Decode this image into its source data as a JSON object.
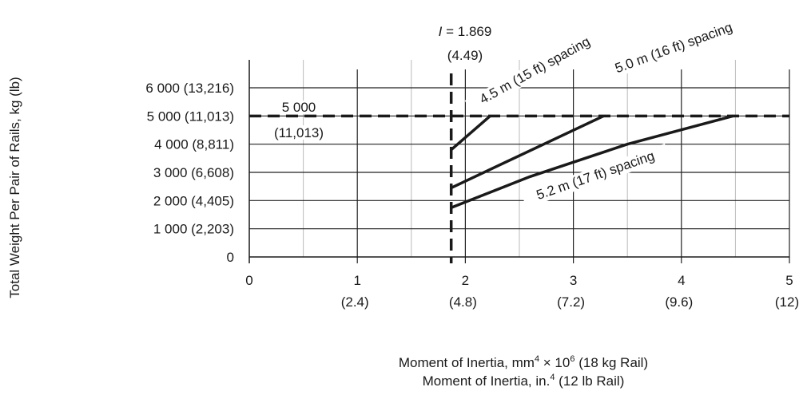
{
  "chart_data": {
    "type": "line",
    "ylabel": "Total Weight Per Pair of Rails, kg (lb)",
    "xlabel_line1": "Moment of Inertia, mm",
    "xlabel_line1_sup1": "4",
    "xlabel_line1_mid": " × 10",
    "xlabel_line1_sup2": "6",
    "xlabel_line1_end": " (18 kg Rail)",
    "xlabel_line2": "Moment of Inertia, in.",
    "xlabel_line2_sup": "4",
    "xlabel_line2_end": " (12 lb Rail)",
    "xlim": [
      0,
      5
    ],
    "ylim": [
      0,
      6700
    ],
    "x_ticks": [
      {
        "value": 0,
        "label": "0",
        "sub": ""
      },
      {
        "value": 1,
        "label": "1",
        "sub": "(2.4)"
      },
      {
        "value": 2,
        "label": "2",
        "sub": "(4.8)"
      },
      {
        "value": 3,
        "label": "3",
        "sub": "(7.2)"
      },
      {
        "value": 4,
        "label": "4",
        "sub": "(9.6)"
      },
      {
        "value": 5,
        "label": "5",
        "sub": "(12)"
      }
    ],
    "y_ticks": [
      {
        "value": 0,
        "label": "0"
      },
      {
        "value": 1000,
        "label": "1 000 (2,203)"
      },
      {
        "value": 2000,
        "label": "2 000 (4,405)"
      },
      {
        "value": 3000,
        "label": "3 000 (6,608)"
      },
      {
        "value": 4000,
        "label": "4 000 (8,811)"
      },
      {
        "value": 5000,
        "label": "5 000 (11,013)"
      },
      {
        "value": 6000,
        "label": "6 000 (13,216)"
      }
    ],
    "grid": {
      "minor_x": [
        0.5,
        1.5,
        2.5,
        3.5,
        4.5
      ],
      "major_x": [
        1,
        2,
        3,
        4,
        5
      ]
    },
    "reference_lines": {
      "vertical": {
        "x": 1.869,
        "label_italic": "I",
        "label_rest": " = 1.869",
        "label_sub": "(4.49)"
      },
      "horizontal": {
        "y": 5000,
        "label": "5 000",
        "label_sub": "(11,013)"
      }
    },
    "series": [
      {
        "name": "4.5 m (15 ft) spacing",
        "x": [
          1.869,
          2.23
        ],
        "y": [
          3800,
          5000
        ]
      },
      {
        "name": "5.0 m (16 ft) spacing",
        "x": [
          1.869,
          3.28
        ],
        "y": [
          2450,
          5000
        ]
      },
      {
        "name": "5.2 m (17 ft) spacing",
        "x": [
          1.869,
          2.6,
          3.5,
          4.48
        ],
        "y": [
          1750,
          2850,
          4000,
          5000
        ]
      }
    ],
    "colors": {
      "line": "#1a1a1a",
      "grid_major": "#222222",
      "grid_minor": "#bbbbbb"
    }
  }
}
